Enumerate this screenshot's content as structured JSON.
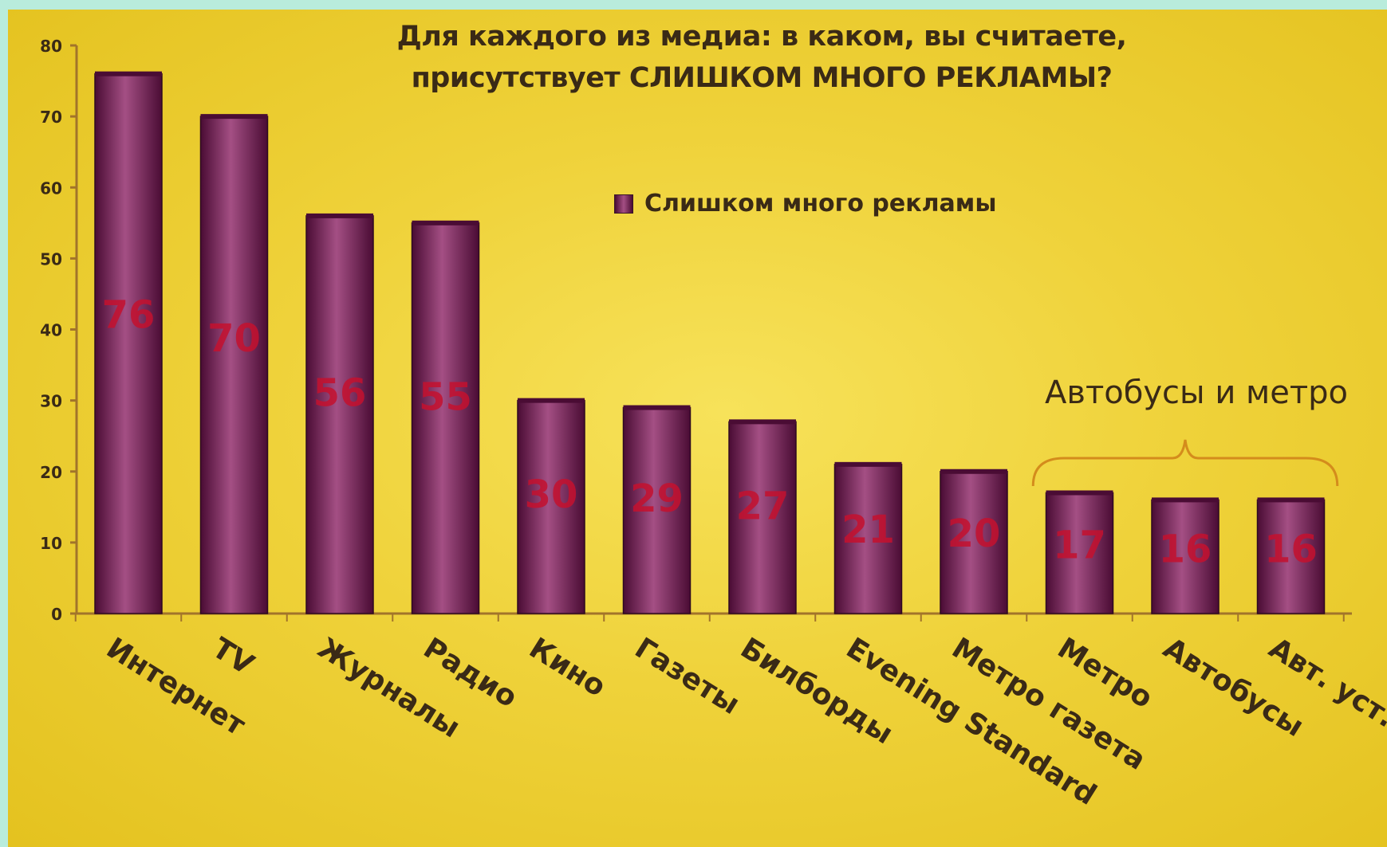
{
  "chart_data": {
    "type": "bar",
    "title_lines": [
      "Для каждого из медиа: в каком, вы считаете,",
      "присутствует СЛИШКОМ МНОГО РЕКЛАМЫ?"
    ],
    "xlabel": "",
    "ylabel": "",
    "ylim": [
      0,
      80
    ],
    "yticks": [
      0,
      10,
      20,
      30,
      40,
      50,
      60,
      70,
      80
    ],
    "categories": [
      "Интернет",
      "TV",
      "Журналы",
      "Радио",
      "Кино",
      "Газеты",
      "Билборды",
      "Evening Standard",
      "Метро газета",
      "Метро",
      "Автобусы",
      "Авт. уст."
    ],
    "series": [
      {
        "name": "Слишком много рекламы",
        "values": [
          76,
          70,
          56,
          55,
          30,
          29,
          27,
          21,
          20,
          17,
          16,
          16
        ]
      }
    ],
    "legend_position": "top-center",
    "grid": false,
    "bracket": {
      "label": "Автобусы и метро",
      "categories": [
        "Метро",
        "Автобусы",
        "Авт. уст."
      ]
    },
    "colors": {
      "bar_dark": "#4a0c34",
      "bar_light": "#a44f84",
      "bar_edge": "#2e0a20",
      "value_label": "#c4102e",
      "axis": "#a2742a",
      "bracket": "#d48c1c",
      "text": "#3a2a16"
    }
  }
}
